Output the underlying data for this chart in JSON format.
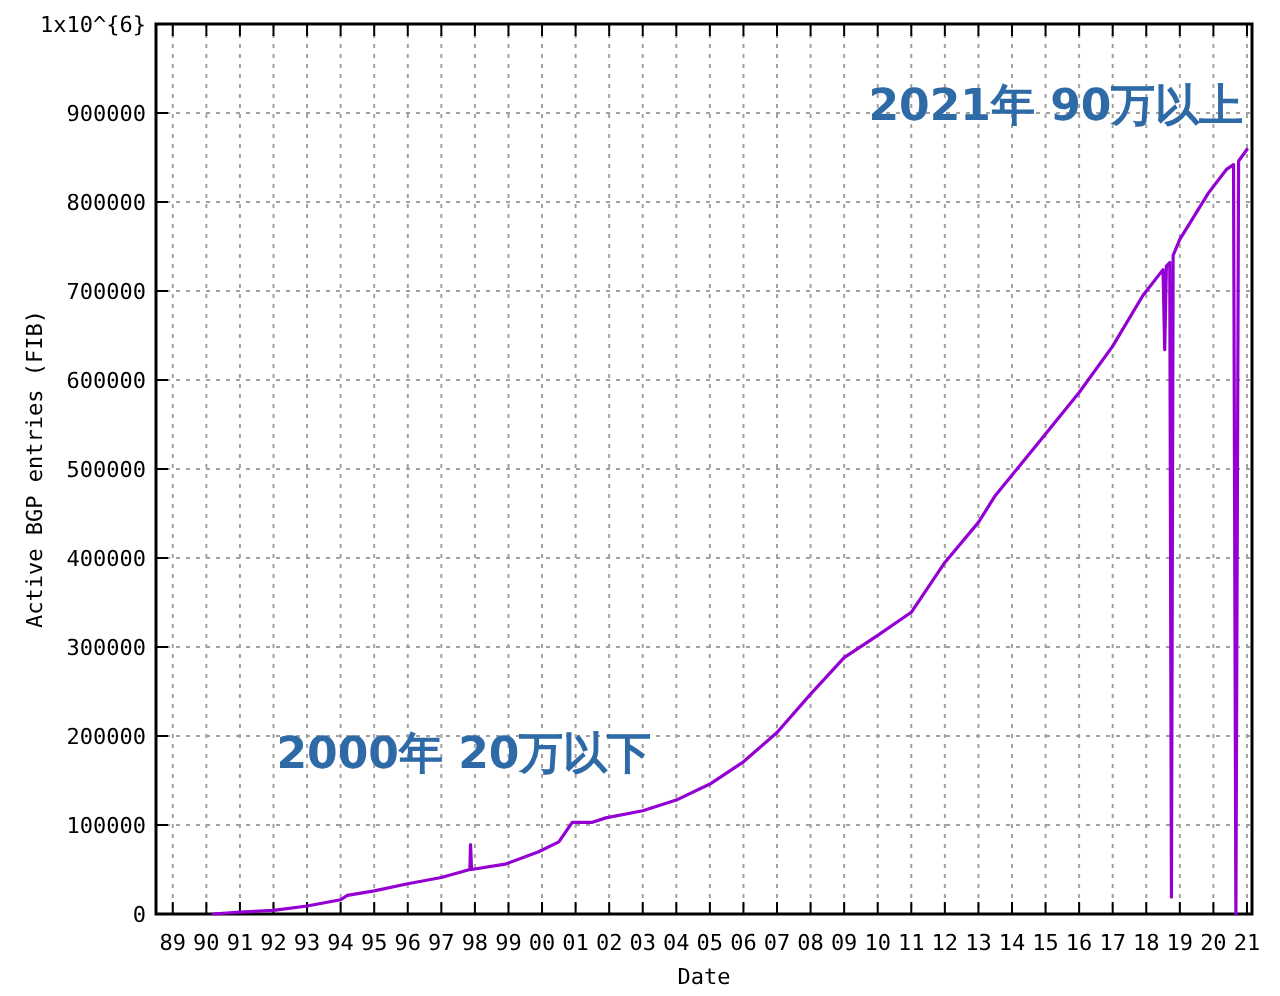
{
  "chart_data": {
    "type": "line",
    "xlabel": "Date",
    "ylabel": "Active BGP entries (FIB)",
    "annotations": [
      "2021年 90万以上",
      "2000年 20万以下"
    ],
    "xlim": [
      1988.5,
      2021.15
    ],
    "xticks": [
      {
        "value": 1989,
        "label": "89"
      },
      {
        "value": 1990,
        "label": "90"
      },
      {
        "value": 1991,
        "label": "91"
      },
      {
        "value": 1992,
        "label": "92"
      },
      {
        "value": 1993,
        "label": "93"
      },
      {
        "value": 1994,
        "label": "94"
      },
      {
        "value": 1995,
        "label": "95"
      },
      {
        "value": 1996,
        "label": "96"
      },
      {
        "value": 1997,
        "label": "97"
      },
      {
        "value": 1998,
        "label": "98"
      },
      {
        "value": 1999,
        "label": "99"
      },
      {
        "value": 2000,
        "label": "00"
      },
      {
        "value": 2001,
        "label": "01"
      },
      {
        "value": 2002,
        "label": "02"
      },
      {
        "value": 2003,
        "label": "03"
      },
      {
        "value": 2004,
        "label": "04"
      },
      {
        "value": 2005,
        "label": "05"
      },
      {
        "value": 2006,
        "label": "06"
      },
      {
        "value": 2007,
        "label": "07"
      },
      {
        "value": 2008,
        "label": "08"
      },
      {
        "value": 2009,
        "label": "09"
      },
      {
        "value": 2010,
        "label": "10"
      },
      {
        "value": 2011,
        "label": "11"
      },
      {
        "value": 2012,
        "label": "12"
      },
      {
        "value": 2013,
        "label": "13"
      },
      {
        "value": 2014,
        "label": "14"
      },
      {
        "value": 2015,
        "label": "15"
      },
      {
        "value": 2016,
        "label": "16"
      },
      {
        "value": 2017,
        "label": "17"
      },
      {
        "value": 2018,
        "label": "18"
      },
      {
        "value": 2019,
        "label": "19"
      },
      {
        "value": 2020,
        "label": "20"
      },
      {
        "value": 2021,
        "label": "21"
      }
    ],
    "ylim": [
      0,
      1000000
    ],
    "yticks": [
      0,
      100000,
      200000,
      300000,
      400000,
      500000,
      600000,
      700000,
      800000,
      900000,
      {
        "value": 1000000,
        "label": "1x10^{6}"
      }
    ],
    "grid": true,
    "series": [
      {
        "color": "#9400d3",
        "x": [
          1990.2,
          1991,
          1992,
          1993,
          1994,
          1994.2,
          1995,
          1996,
          1997,
          1997.85,
          1997.87,
          1997.9,
          1998.9,
          1999.9,
          2000.5,
          2000.9,
          2001.5,
          2001.9,
          2003,
          2004,
          2005,
          2006,
          2007,
          2008,
          2009,
          2010,
          2011,
          2012,
          2013,
          2013.5,
          2014.8,
          2016,
          2017,
          2017.9,
          2018.5,
          2018.55,
          2018.6,
          2018.7,
          2018.75,
          2018.8,
          2019,
          2019.85,
          2020.4,
          2020.6,
          2020.67,
          2020.75,
          2021
        ],
        "values": [
          0,
          2000,
          4000,
          9000,
          16000,
          21000,
          26000,
          34000,
          41000,
          50000,
          78000,
          50000,
          56000,
          70000,
          81000,
          103000,
          103000,
          108000,
          116000,
          128000,
          146000,
          171000,
          204000,
          247000,
          288000,
          313000,
          339000,
          395000,
          440000,
          470000,
          530000,
          586000,
          638000,
          695000,
          724000,
          634000,
          728000,
          732000,
          19000,
          740000,
          758000,
          810000,
          837000,
          842000,
          0,
          846000,
          859000
        ]
      }
    ]
  }
}
